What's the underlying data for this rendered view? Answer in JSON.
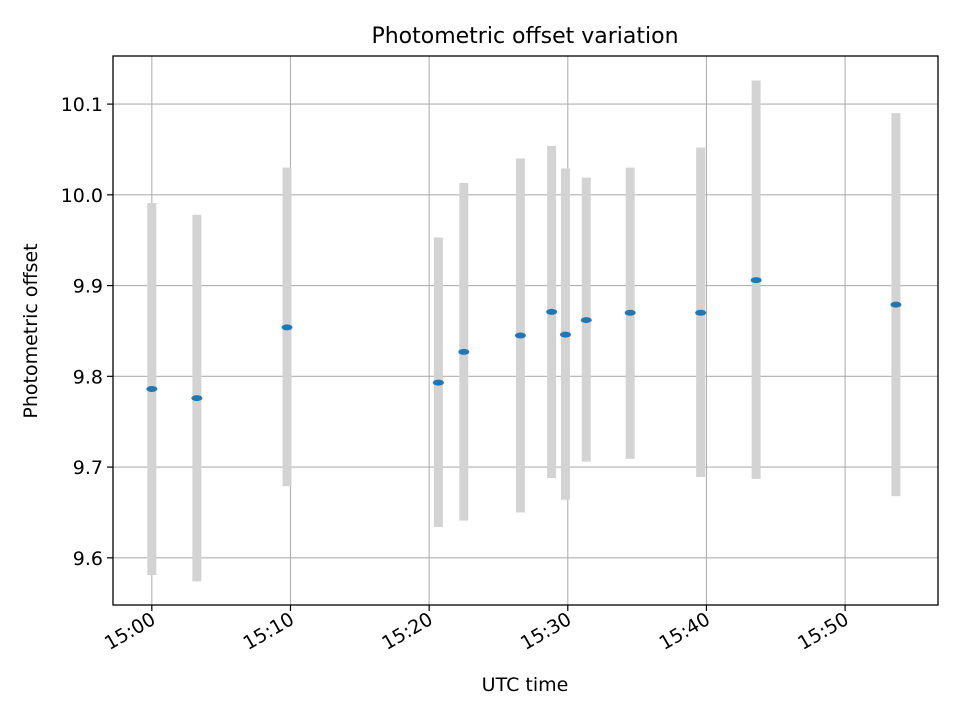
{
  "chart_data": {
    "type": "scatter",
    "title": "Photometric offset variation",
    "xlabel": "UTC time",
    "ylabel": "Photometric offset",
    "x_axis": {
      "type": "time",
      "ticks": [
        "15:00",
        "15:10",
        "15:20",
        "15:30",
        "15:40",
        "15:50"
      ],
      "range": [
        "14:57.2",
        "15:56.7"
      ]
    },
    "y_axis": {
      "ticks": [
        9.6,
        9.7,
        9.8,
        9.9,
        10.0,
        10.1
      ],
      "tick_labels": [
        "9.6",
        "9.7",
        "9.8",
        "9.9",
        "10.0",
        "10.1"
      ],
      "ylim": [
        9.548,
        10.153
      ]
    },
    "grid": true,
    "series": [
      {
        "marker_color": "#1f77b4",
        "errorbar_color": "#d3d3d3",
        "points": [
          {
            "x": "15:00:00",
            "y": 9.786,
            "ylow": 9.581,
            "yhigh": 9.991
          },
          {
            "x": "15:03:15",
            "y": 9.776,
            "ylow": 9.574,
            "yhigh": 9.978
          },
          {
            "x": "15:09:45",
            "y": 9.854,
            "ylow": 9.679,
            "yhigh": 10.03
          },
          {
            "x": "15:20:40",
            "y": 9.793,
            "ylow": 9.634,
            "yhigh": 9.953
          },
          {
            "x": "15:22:30",
            "y": 9.827,
            "ylow": 9.641,
            "yhigh": 10.013
          },
          {
            "x": "15:26:35",
            "y": 9.845,
            "ylow": 9.65,
            "yhigh": 10.04
          },
          {
            "x": "15:28:50",
            "y": 9.871,
            "ylow": 9.688,
            "yhigh": 10.054
          },
          {
            "x": "15:29:50",
            "y": 9.846,
            "ylow": 9.664,
            "yhigh": 10.029
          },
          {
            "x": "15:31:20",
            "y": 9.862,
            "ylow": 9.706,
            "yhigh": 10.019
          },
          {
            "x": "15:34:30",
            "y": 9.87,
            "ylow": 9.709,
            "yhigh": 10.03
          },
          {
            "x": "15:39:35",
            "y": 9.87,
            "ylow": 9.689,
            "yhigh": 10.052
          },
          {
            "x": "15:43:35",
            "y": 9.906,
            "ylow": 9.687,
            "yhigh": 10.126
          },
          {
            "x": "15:53:40",
            "y": 9.879,
            "ylow": 9.668,
            "yhigh": 10.09
          }
        ]
      }
    ]
  }
}
